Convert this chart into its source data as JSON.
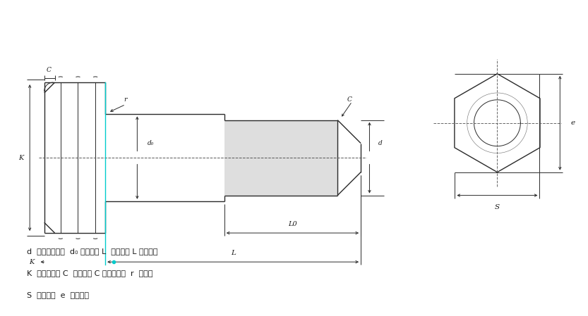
{
  "bg_color": "#ffffff",
  "line_color": "#2a2a2a",
  "dim_color": "#2a2a2a",
  "cyan_color": "#00cccc",
  "text_color": "#1a1a1a",
  "legend_text": [
    "d  螺纹公称直径  d₀ 杆部直径 L  公称长度 L 螺纹长度",
    "K  六角头厚度 C  螺纹倒角 C 六角头倒角  r  过渡圆",
    "S  六角对边  e  六角对角"
  ]
}
